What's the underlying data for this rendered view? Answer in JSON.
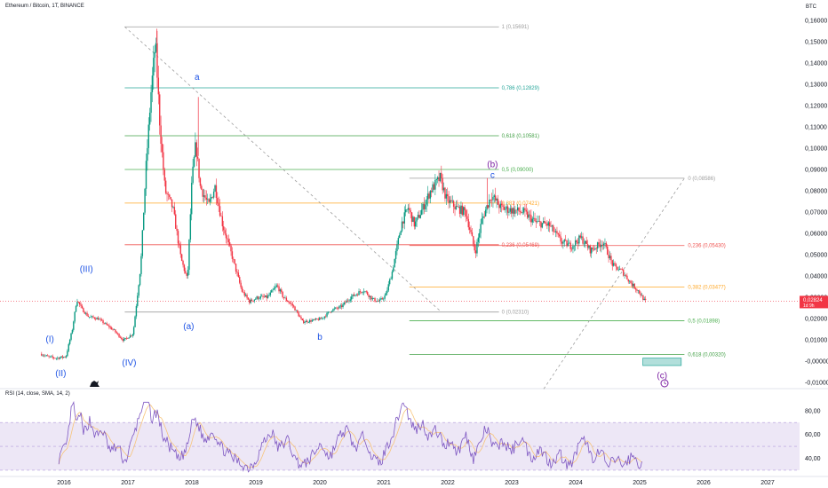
{
  "header": {
    "title": "Ethereum / Bitcoin, 1T, BINANCE",
    "currency": "BTC"
  },
  "rsi_header": "RSI (14, close, SMA, 14, 2)",
  "price_badge": {
    "value": "0,02824",
    "sub": "1d 9h",
    "color": "#f23645"
  },
  "colors": {
    "up": "#089981",
    "down": "#f23645",
    "rsi_line": "#7e57c2",
    "rsi_ma": "#f7c47a",
    "rsi_band": "#ede7f6"
  },
  "chart_data": {
    "type": "candlestick",
    "price_axis": {
      "ylim": [
        -0.012,
        0.162
      ],
      "ticks": [
        "0,16000",
        "0,15000",
        "0,14000",
        "0,13000",
        "0,12000",
        "0,11000",
        "0,10000",
        "0,09000",
        "0,08000",
        "0,07000",
        "0,06000",
        "0,05000",
        "0,04000",
        "0,03000",
        "0,02000",
        "0,01000",
        "-0,00000",
        "-0,01000"
      ]
    },
    "time_axis": {
      "ticks": [
        "2016",
        "2017",
        "2018",
        "2019",
        "2020",
        "2021",
        "2022",
        "2023",
        "2024",
        "2025",
        "2026",
        "2027"
      ]
    },
    "price_path": [
      [
        2015.65,
        0.0035
      ],
      [
        2015.78,
        0.002
      ],
      [
        2015.9,
        0.0015
      ],
      [
        2016.05,
        0.0022
      ],
      [
        2016.15,
        0.015
      ],
      [
        2016.22,
        0.029
      ],
      [
        2016.3,
        0.0245
      ],
      [
        2016.4,
        0.021
      ],
      [
        2016.55,
        0.02
      ],
      [
        2016.8,
        0.0145
      ],
      [
        2016.95,
        0.0098
      ],
      [
        2017.1,
        0.013
      ],
      [
        2017.22,
        0.045
      ],
      [
        2017.3,
        0.09
      ],
      [
        2017.38,
        0.126
      ],
      [
        2017.45,
        0.1495
      ],
      [
        2017.52,
        0.11
      ],
      [
        2017.6,
        0.08
      ],
      [
        2017.72,
        0.072
      ],
      [
        2017.85,
        0.048
      ],
      [
        2017.95,
        0.038
      ],
      [
        2018.02,
        0.085
      ],
      [
        2018.08,
        0.102
      ],
      [
        2018.15,
        0.082
      ],
      [
        2018.28,
        0.073
      ],
      [
        2018.38,
        0.082
      ],
      [
        2018.5,
        0.064
      ],
      [
        2018.65,
        0.049
      ],
      [
        2018.8,
        0.033
      ],
      [
        2018.92,
        0.028
      ],
      [
        2019.05,
        0.03
      ],
      [
        2019.2,
        0.03
      ],
      [
        2019.35,
        0.0355
      ],
      [
        2019.45,
        0.03
      ],
      [
        2019.6,
        0.026
      ],
      [
        2019.75,
        0.0185
      ],
      [
        2019.88,
        0.019
      ],
      [
        2020.05,
        0.02
      ],
      [
        2020.2,
        0.024
      ],
      [
        2020.35,
        0.0255
      ],
      [
        2020.5,
        0.03
      ],
      [
        2020.7,
        0.0335
      ],
      [
        2020.85,
        0.029
      ],
      [
        2020.95,
        0.028
      ],
      [
        2021.05,
        0.031
      ],
      [
        2021.15,
        0.042
      ],
      [
        2021.3,
        0.065
      ],
      [
        2021.4,
        0.072
      ],
      [
        2021.5,
        0.064
      ],
      [
        2021.6,
        0.07
      ],
      [
        2021.75,
        0.08
      ],
      [
        2021.9,
        0.086
      ],
      [
        2022.0,
        0.076
      ],
      [
        2022.15,
        0.072
      ],
      [
        2022.3,
        0.07
      ],
      [
        2022.45,
        0.051
      ],
      [
        2022.55,
        0.066
      ],
      [
        2022.7,
        0.078
      ],
      [
        2022.85,
        0.072
      ],
      [
        2023.0,
        0.071
      ],
      [
        2023.2,
        0.07
      ],
      [
        2023.4,
        0.065
      ],
      [
        2023.6,
        0.064
      ],
      [
        2023.8,
        0.056
      ],
      [
        2023.95,
        0.054
      ],
      [
        2024.1,
        0.058
      ],
      [
        2024.25,
        0.052
      ],
      [
        2024.45,
        0.056
      ],
      [
        2024.6,
        0.045
      ],
      [
        2024.75,
        0.042
      ],
      [
        2024.9,
        0.036
      ],
      [
        2025.0,
        0.033
      ],
      [
        2025.1,
        0.0282
      ]
    ],
    "spikes": [
      [
        2017.45,
        0.156
      ],
      [
        2018.1,
        0.124
      ],
      [
        2021.9,
        0.089
      ],
      [
        2022.62,
        0.086
      ]
    ],
    "fib_left": {
      "x_range": [
        2016.95,
        2022.8
      ],
      "levels": [
        {
          "label": "1 (0,15691)",
          "value": 0.15691,
          "color": "#9e9e9e"
        },
        {
          "label": "0,786 (0,12829)",
          "value": 0.12829,
          "color": "#26a69a"
        },
        {
          "label": "0,618 (0,10581)",
          "value": 0.10581,
          "color": "#43a047"
        },
        {
          "label": "0,5 (0,09000)",
          "value": 0.09,
          "color": "#4caf50"
        },
        {
          "label": "0,382 (0,07421)",
          "value": 0.07421,
          "color": "#ffa726"
        },
        {
          "label": "0,236 (0,05469)",
          "value": 0.05469,
          "color": "#ef5350"
        },
        {
          "label": "0 (0,02310)",
          "value": 0.0231,
          "color": "#9e9e9e"
        }
      ]
    },
    "fib_right": {
      "x_range": [
        2020.4,
        2027.7
      ],
      "levels": [
        {
          "label": "0 (0,08586)",
          "value": 0.08586,
          "color": "#9e9e9e"
        },
        {
          "label": "0,236 (0,05430)",
          "value": 0.0543,
          "color": "#ef5350"
        },
        {
          "label": "0,382 (0,03477)",
          "value": 0.03477,
          "color": "#ffa726"
        },
        {
          "label": "0,5 (0,01898)",
          "value": 0.01898,
          "color": "#4caf50"
        },
        {
          "label": "0,618 (0,00320)",
          "value": 0.0032,
          "color": "#43a047"
        }
      ]
    },
    "waves": [
      {
        "text": "(I)",
        "x": 2015.78,
        "y": 0.009,
        "color": "#1e53e5"
      },
      {
        "text": "(II)",
        "x": 2015.95,
        "y": -0.007,
        "color": "#1e53e5"
      },
      {
        "text": "(III)",
        "x": 2016.35,
        "y": 0.042,
        "color": "#1e53e5"
      },
      {
        "text": "(IV)",
        "x": 2017.02,
        "y": -0.002,
        "color": "#1e53e5"
      },
      {
        "text": "a",
        "x": 2018.08,
        "y": 0.132,
        "color": "#1e53e5"
      },
      {
        "text": "(a)",
        "x": 2017.95,
        "y": 0.015,
        "color": "#1e53e5"
      },
      {
        "text": "b",
        "x": 2020.0,
        "y": 0.01,
        "color": "#1e53e5"
      },
      {
        "text": "(b)",
        "x": 2022.7,
        "y": 0.091,
        "color": "#7b1fa2"
      },
      {
        "text": "c",
        "x": 2022.7,
        "y": 0.086,
        "color": "#1e53e5"
      },
      {
        "text": "(c)",
        "x": 2025.35,
        "y": -0.008,
        "color": "#7b1fa2"
      }
    ],
    "target_box": {
      "x": [
        2025.05,
        2025.65
      ],
      "y": [
        -0.002,
        0.0015
      ]
    },
    "rsi": {
      "levels": [
        80,
        60,
        40
      ],
      "labels": [
        "80,00",
        "60,00",
        "40,00"
      ],
      "overbought": 70,
      "mid": 50,
      "oversold": 30,
      "ylim": [
        27,
        88
      ],
      "series": [
        [
          2015.92,
          40
        ],
        [
          2016.05,
          52
        ],
        [
          2016.1,
          76
        ],
        [
          2016.15,
          86
        ],
        [
          2016.2,
          66
        ],
        [
          2016.25,
          80
        ],
        [
          2016.3,
          60
        ],
        [
          2016.4,
          72
        ],
        [
          2016.5,
          58
        ],
        [
          2016.6,
          64
        ],
        [
          2016.72,
          46
        ],
        [
          2016.85,
          50
        ],
        [
          2016.95,
          36
        ],
        [
          2017.05,
          52
        ],
        [
          2017.15,
          70
        ],
        [
          2017.22,
          84
        ],
        [
          2017.3,
          90
        ],
        [
          2017.38,
          72
        ],
        [
          2017.45,
          80
        ],
        [
          2017.55,
          58
        ],
        [
          2017.65,
          50
        ],
        [
          2017.8,
          38
        ],
        [
          2017.92,
          48
        ],
        [
          2018.02,
          74
        ],
        [
          2018.1,
          68
        ],
        [
          2018.2,
          54
        ],
        [
          2018.32,
          64
        ],
        [
          2018.45,
          50
        ],
        [
          2018.6,
          42
        ],
        [
          2018.75,
          36
        ],
        [
          2018.88,
          32
        ],
        [
          2019.0,
          38
        ],
        [
          2019.1,
          52
        ],
        [
          2019.25,
          62
        ],
        [
          2019.35,
          48
        ],
        [
          2019.5,
          56
        ],
        [
          2019.62,
          38
        ],
        [
          2019.75,
          34
        ],
        [
          2019.88,
          42
        ],
        [
          2020.02,
          52
        ],
        [
          2020.15,
          40
        ],
        [
          2020.3,
          58
        ],
        [
          2020.42,
          64
        ],
        [
          2020.55,
          48
        ],
        [
          2020.7,
          60
        ],
        [
          2020.82,
          40
        ],
        [
          2020.95,
          36
        ],
        [
          2021.05,
          50
        ],
        [
          2021.15,
          62
        ],
        [
          2021.25,
          80
        ],
        [
          2021.32,
          88
        ],
        [
          2021.4,
          72
        ],
        [
          2021.5,
          64
        ],
        [
          2021.6,
          70
        ],
        [
          2021.7,
          58
        ],
        [
          2021.82,
          64
        ],
        [
          2021.95,
          50
        ],
        [
          2022.05,
          56
        ],
        [
          2022.15,
          44
        ],
        [
          2022.28,
          60
        ],
        [
          2022.4,
          40
        ],
        [
          2022.5,
          52
        ],
        [
          2022.6,
          66
        ],
        [
          2022.72,
          48
        ],
        [
          2022.85,
          54
        ],
        [
          2023.0,
          46
        ],
        [
          2023.15,
          58
        ],
        [
          2023.3,
          40
        ],
        [
          2023.45,
          48
        ],
        [
          2023.6,
          36
        ],
        [
          2023.75,
          44
        ],
        [
          2023.9,
          32
        ],
        [
          2024.05,
          50
        ],
        [
          2024.15,
          56
        ],
        [
          2024.25,
          40
        ],
        [
          2024.4,
          46
        ],
        [
          2024.5,
          32
        ],
        [
          2024.62,
          40
        ],
        [
          2024.75,
          34
        ],
        [
          2024.88,
          42
        ],
        [
          2024.98,
          36
        ],
        [
          2025.05,
          34
        ]
      ]
    }
  }
}
